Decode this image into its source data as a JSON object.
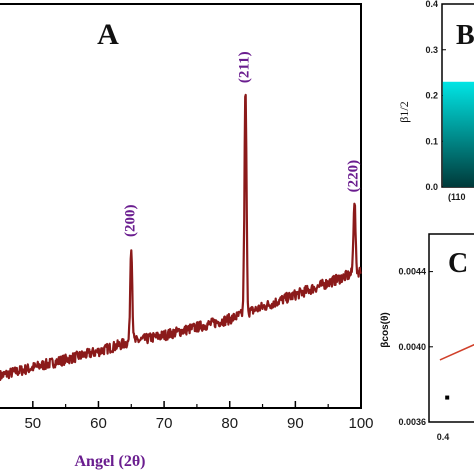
{
  "chart_data": [
    {
      "panel": "A",
      "type": "line",
      "title": "A",
      "xlabel": "Angel (2θ)",
      "ylabel": "",
      "xlim": [
        45,
        100
      ],
      "x_ticks": [
        50,
        60,
        70,
        80,
        90,
        100
      ],
      "x_tick_labels": [
        "50",
        "60",
        "70",
        "80",
        "90",
        "100"
      ],
      "grid": false,
      "color": "#8b1a1a",
      "baseline": [
        [
          45,
          8
        ],
        [
          60,
          14
        ],
        [
          64,
          16
        ],
        [
          70,
          18
        ],
        [
          80,
          22
        ],
        [
          90,
          28
        ],
        [
          100,
          34
        ]
      ],
      "peaks": [
        {
          "x": 65.0,
          "height": 24,
          "label": "(200)"
        },
        {
          "x": 82.4,
          "height": 55,
          "label": "(211)"
        },
        {
          "x": 99.0,
          "height": 18,
          "label": "(220)"
        }
      ],
      "y_range": [
        0,
        100
      ]
    },
    {
      "panel": "B",
      "type": "bar",
      "title": "B",
      "ylabel": "β1/2",
      "ylim": [
        0,
        0.4
      ],
      "y_ticks": [
        "0.0",
        "0.1",
        "0.2",
        "0.3",
        "0.4"
      ],
      "categories": [
        "(110"
      ],
      "values": [
        0.23
      ],
      "bar_gradient": [
        "#00e5e5",
        "#003a3a"
      ]
    },
    {
      "panel": "C",
      "type": "scatter",
      "title": "C",
      "ylabel": "βcos(θ)",
      "y_ticks": [
        "0.0036",
        "0.0040",
        "0.0044"
      ],
      "ylim": [
        0.0036,
        0.0046
      ],
      "x_ticks": [
        "0.4"
      ],
      "xlim": [
        0.35,
        0.6
      ],
      "points": [
        [
          0.4,
          0.00373
        ]
      ],
      "fit_line": [
        [
          0.38,
          0.00393
        ],
        [
          0.6,
          0.00412
        ]
      ],
      "fit_color": "#d0402a"
    }
  ]
}
